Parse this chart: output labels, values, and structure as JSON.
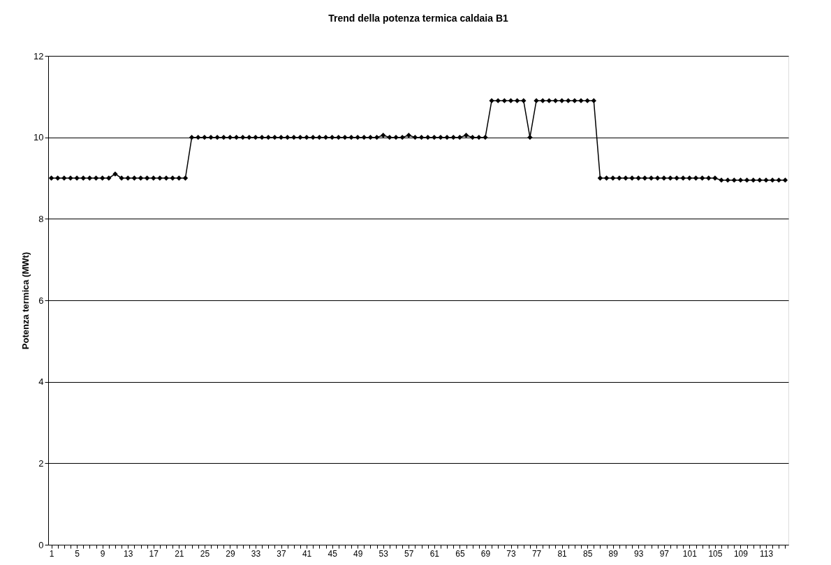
{
  "chart_data": {
    "type": "line",
    "title": "Trend della potenza termica caldaia B1",
    "ylabel": "Potenza termica (MWt)",
    "categories": [
      "1",
      null,
      null,
      null,
      "5",
      null,
      null,
      null,
      "9",
      null,
      null,
      null,
      "13",
      null,
      null,
      null,
      "17",
      null,
      null,
      null,
      "21",
      null,
      null,
      null,
      "25",
      null,
      null,
      null,
      "29",
      null,
      null,
      null,
      "33",
      null,
      null,
      null,
      "37",
      null,
      null,
      null,
      "41",
      null,
      null,
      null,
      "45",
      null,
      null,
      null,
      "49",
      null,
      null,
      null,
      "53",
      null,
      null,
      null,
      "57",
      null,
      null,
      null,
      "61",
      null,
      null,
      null,
      "65",
      null,
      null,
      null,
      "69",
      null,
      null,
      null,
      "73",
      null,
      null,
      null,
      "77",
      null,
      null,
      null,
      "81",
      null,
      null,
      null,
      "85",
      null,
      null,
      null,
      "89",
      null,
      null,
      null,
      "93",
      null,
      null,
      null,
      "97",
      null,
      null,
      null,
      "101",
      null,
      null,
      null,
      "105",
      null,
      null,
      null,
      "109",
      null,
      null,
      null,
      "113",
      null,
      null,
      null
    ],
    "series": [
      {
        "color": "#000000",
        "values": [
          9.0,
          9.0,
          9.0,
          9.0,
          9.0,
          9.0,
          9.0,
          9.0,
          9.0,
          9.0,
          9.1,
          9.0,
          9.0,
          9.0,
          9.0,
          9.0,
          9.0,
          9.0,
          9.0,
          9.0,
          9.0,
          9.0,
          10.0,
          10.0,
          10.0,
          10.0,
          10.0,
          10.0,
          10.0,
          10.0,
          10.0,
          10.0,
          10.0,
          10.0,
          10.0,
          10.0,
          10.0,
          10.0,
          10.0,
          10.0,
          10.0,
          10.0,
          10.0,
          10.0,
          10.0,
          10.0,
          10.0,
          10.0,
          10.0,
          10.0,
          10.0,
          10.0,
          10.05,
          10.0,
          10.0,
          10.0,
          10.05,
          10.0,
          10.0,
          10.0,
          10.0,
          10.0,
          10.0,
          10.0,
          10.0,
          10.05,
          10.0,
          10.0,
          10.0,
          10.9,
          10.9,
          10.9,
          10.9,
          10.9,
          10.9,
          10.0,
          10.9,
          10.9,
          10.9,
          10.9,
          10.9,
          10.9,
          10.9,
          10.9,
          10.9,
          10.9,
          9.0,
          9.0,
          9.0,
          9.0,
          9.0,
          9.0,
          9.0,
          9.0,
          9.0,
          9.0,
          9.0,
          9.0,
          9.0,
          9.0,
          9.0,
          9.0,
          9.0,
          9.0,
          9.0,
          8.95,
          8.95,
          8.95,
          8.95,
          8.95,
          8.95,
          8.95,
          8.95,
          8.95,
          8.95,
          8.95
        ]
      }
    ],
    "ylim": [
      0,
      12
    ],
    "yticks": [
      0,
      2,
      4,
      6,
      8,
      10,
      12
    ],
    "grid": "y",
    "legend": false,
    "marker": "diamond",
    "line_style": "solid"
  }
}
